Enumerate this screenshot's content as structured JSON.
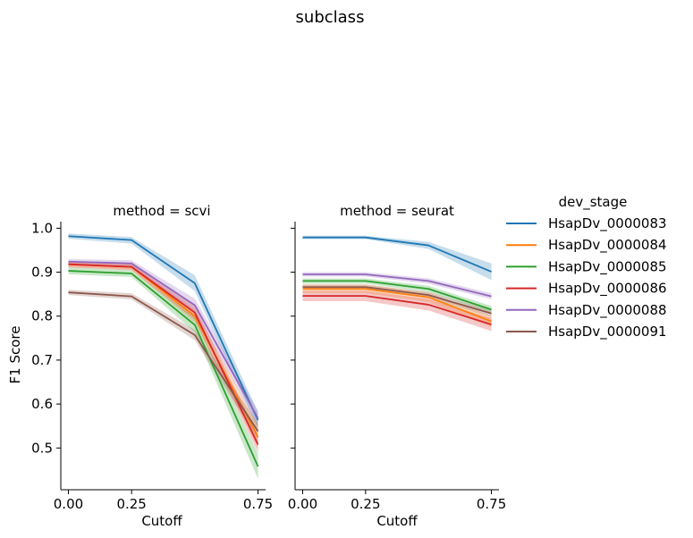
{
  "chart_data": {
    "type": "line",
    "title": "subclass",
    "xlabel": "Cutoff",
    "ylabel": "F1 Score",
    "xlim": [
      -0.03,
      0.78
    ],
    "ylim": [
      0.405,
      1.015
    ],
    "xticks": [
      0.0,
      0.25,
      0.75
    ],
    "xtick_labels": [
      "0.00",
      "0.25",
      "0.75"
    ],
    "yticks": [
      0.5,
      0.6,
      0.7,
      0.8,
      0.9,
      1.0
    ],
    "ytick_labels": [
      "0.5",
      "0.6",
      "0.7",
      "0.8",
      "0.9",
      "1.0"
    ],
    "x": [
      0.0,
      0.25,
      0.5,
      0.75
    ],
    "legend": {
      "title": "dev_stage",
      "placement": "right"
    },
    "facets": [
      {
        "title": "method = scvi",
        "series": [
          {
            "name": "HsapDv_0000083",
            "color": "#1f77b4",
            "values": [
              0.982,
              0.973,
              0.875,
              0.563
            ],
            "lower": [
              0.976,
              0.965,
              0.857,
              0.545
            ],
            "upper": [
              0.988,
              0.98,
              0.893,
              0.582
            ]
          },
          {
            "name": "HsapDv_0000084",
            "color": "#ff7f0e",
            "values": [
              0.918,
              0.912,
              0.8,
              0.525
            ],
            "lower": [
              0.911,
              0.905,
              0.785,
              0.5
            ],
            "upper": [
              0.925,
              0.919,
              0.815,
              0.55
            ]
          },
          {
            "name": "HsapDv_0000085",
            "color": "#2ca02c",
            "values": [
              0.903,
              0.897,
              0.78,
              0.458
            ],
            "lower": [
              0.895,
              0.889,
              0.763,
              0.43
            ],
            "upper": [
              0.911,
              0.905,
              0.797,
              0.487
            ]
          },
          {
            "name": "HsapDv_0000086",
            "color": "#d62728",
            "values": [
              0.918,
              0.912,
              0.808,
              0.508
            ],
            "lower": [
              0.911,
              0.905,
              0.792,
              0.49
            ],
            "upper": [
              0.925,
              0.919,
              0.824,
              0.527
            ]
          },
          {
            "name": "HsapDv_0000088",
            "color": "#9467bd",
            "values": [
              0.924,
              0.92,
              0.825,
              0.568
            ],
            "lower": [
              0.918,
              0.913,
              0.81,
              0.55
            ],
            "upper": [
              0.93,
              0.927,
              0.84,
              0.585
            ]
          },
          {
            "name": "HsapDv_0000091",
            "color": "#8c564b",
            "values": [
              0.854,
              0.845,
              0.757,
              0.538
            ],
            "lower": [
              0.848,
              0.838,
              0.745,
              0.52
            ],
            "upper": [
              0.86,
              0.852,
              0.769,
              0.556
            ]
          }
        ]
      },
      {
        "title": "method = seurat",
        "series": [
          {
            "name": "HsapDv_0000083",
            "color": "#1f77b4",
            "values": [
              0.979,
              0.979,
              0.961,
              0.901
            ],
            "lower": [
              0.975,
              0.975,
              0.953,
              0.882
            ],
            "upper": [
              0.983,
              0.983,
              0.969,
              0.92
            ]
          },
          {
            "name": "HsapDv_0000084",
            "color": "#ff7f0e",
            "values": [
              0.862,
              0.862,
              0.843,
              0.788
            ],
            "lower": [
              0.852,
              0.852,
              0.832,
              0.775
            ],
            "upper": [
              0.872,
              0.872,
              0.854,
              0.801
            ]
          },
          {
            "name": "HsapDv_0000085",
            "color": "#2ca02c",
            "values": [
              0.88,
              0.88,
              0.862,
              0.815
            ],
            "lower": [
              0.874,
              0.874,
              0.855,
              0.807
            ],
            "upper": [
              0.886,
              0.886,
              0.869,
              0.823
            ]
          },
          {
            "name": "HsapDv_0000086",
            "color": "#d62728",
            "values": [
              0.846,
              0.846,
              0.826,
              0.781
            ],
            "lower": [
              0.834,
              0.834,
              0.813,
              0.766
            ],
            "upper": [
              0.858,
              0.858,
              0.839,
              0.796
            ]
          },
          {
            "name": "HsapDv_0000088",
            "color": "#9467bd",
            "values": [
              0.895,
              0.895,
              0.88,
              0.845
            ],
            "lower": [
              0.89,
              0.89,
              0.874,
              0.838
            ],
            "upper": [
              0.9,
              0.9,
              0.886,
              0.852
            ]
          },
          {
            "name": "HsapDv_0000091",
            "color": "#8c564b",
            "values": [
              0.866,
              0.866,
              0.848,
              0.806
            ],
            "lower": [
              0.86,
              0.86,
              0.841,
              0.798
            ],
            "upper": [
              0.872,
              0.872,
              0.855,
              0.814
            ]
          }
        ]
      }
    ]
  }
}
